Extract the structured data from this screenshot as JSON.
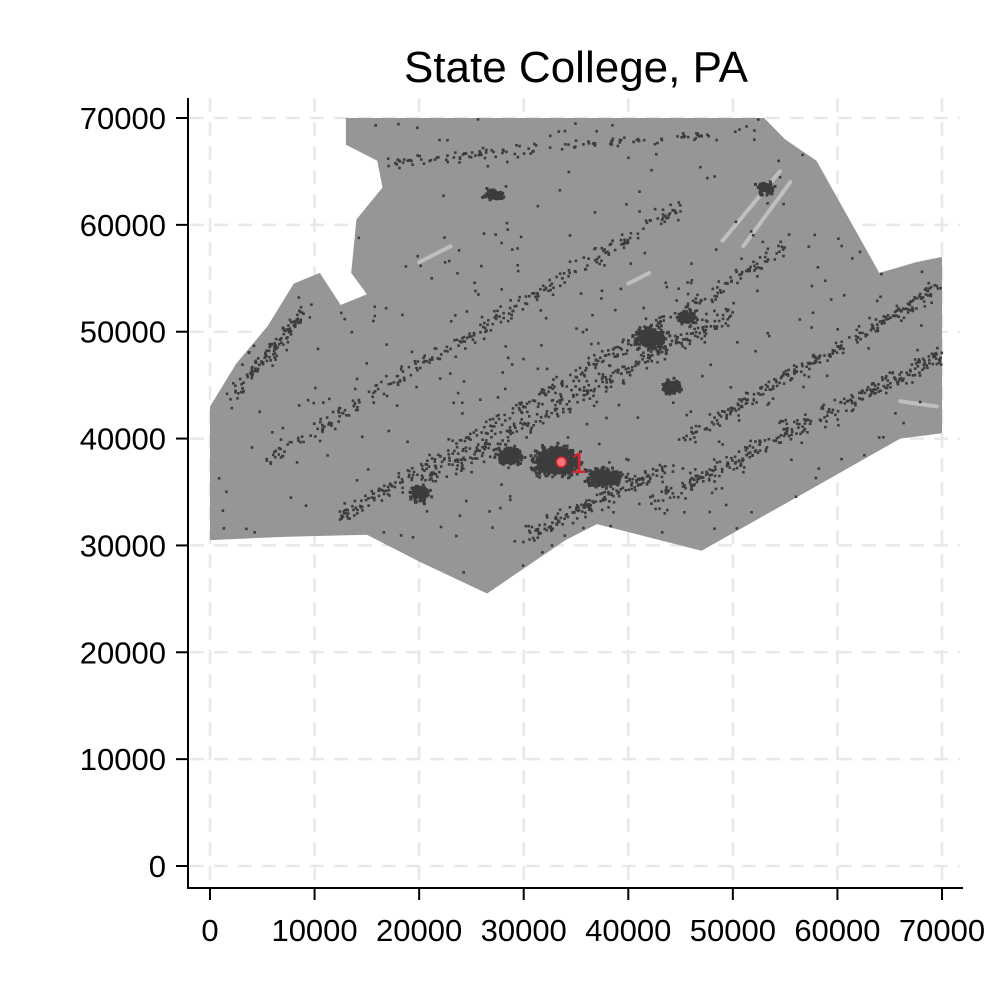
{
  "chart_data": {
    "type": "scatter",
    "title": "State College, PA",
    "xlabel": "",
    "ylabel": "",
    "xlim": [
      -2000,
      72000
    ],
    "ylim": [
      -2000,
      72000
    ],
    "x_ticks": [
      "0",
      "10000",
      "20000",
      "30000",
      "40000",
      "50000",
      "60000",
      "70000"
    ],
    "y_ticks": [
      "0",
      "10000",
      "20000",
      "30000",
      "40000",
      "50000",
      "60000",
      "70000"
    ],
    "grid": true,
    "legend": "none",
    "series": [
      {
        "points": [
          {
            "x": 33600,
            "y": 37800,
            "label": "1"
          }
        ]
      }
    ],
    "region_outline": [
      [
        0,
        30500
      ],
      [
        0,
        43000
      ],
      [
        2500,
        47000
      ],
      [
        5500,
        50500
      ],
      [
        8000,
        54500
      ],
      [
        10500,
        55500
      ],
      [
        12500,
        52500
      ],
      [
        15000,
        53500
      ],
      [
        13500,
        55500
      ],
      [
        14000,
        60500
      ],
      [
        16500,
        63500
      ],
      [
        16000,
        66000
      ],
      [
        13000,
        67500
      ],
      [
        13000,
        70000
      ],
      [
        53000,
        70000
      ],
      [
        55000,
        68000
      ],
      [
        58000,
        66000
      ],
      [
        64000,
        55500
      ],
      [
        67500,
        56500
      ],
      [
        70000,
        57000
      ],
      [
        70000,
        40500
      ],
      [
        66000,
        40000
      ],
      [
        57000,
        35000
      ],
      [
        47000,
        29500
      ],
      [
        41000,
        31000
      ],
      [
        37000,
        32000
      ],
      [
        34000,
        30500
      ],
      [
        26500,
        25500
      ],
      [
        20000,
        28500
      ],
      [
        15000,
        31000
      ],
      [
        7000,
        30800
      ]
    ],
    "colors": {
      "region": "#969696",
      "urban": "#3c3c3c",
      "water": "#bfbfbf",
      "marker": "#e0202a",
      "grid": "#e8e8e8",
      "axis": "#000000"
    }
  }
}
